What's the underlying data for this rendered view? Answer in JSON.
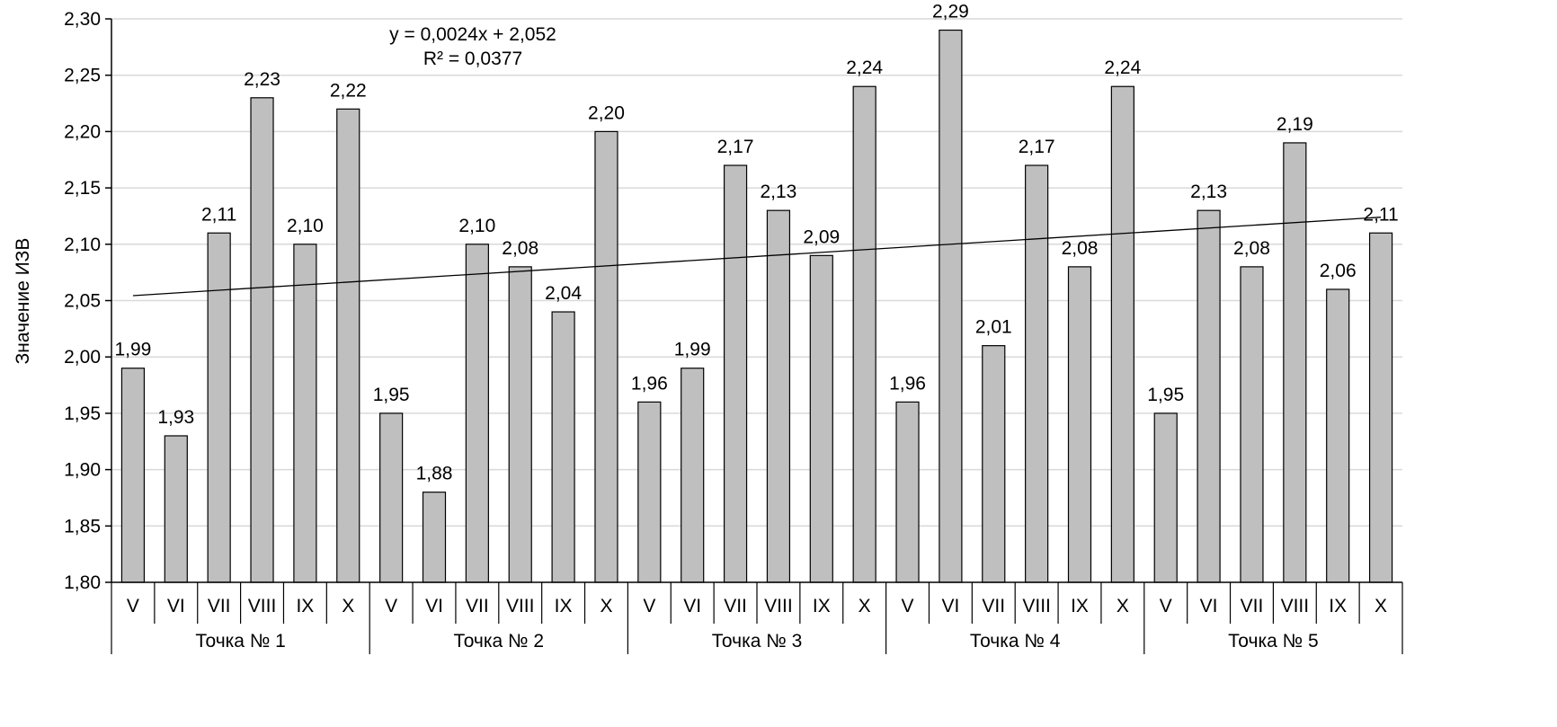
{
  "chart_data": {
    "type": "bar",
    "title": "",
    "xlabel": "",
    "ylabel": "Значение ИЗВ",
    "ylim": [
      1.8,
      2.3
    ],
    "yticks": [
      "1,80",
      "1,85",
      "1,90",
      "1,95",
      "2,00",
      "2,05",
      "2,10",
      "2,15",
      "2,20",
      "2,25",
      "2,30"
    ],
    "grid": true,
    "months": [
      "V",
      "VI",
      "VII",
      "VIII",
      "IX",
      "X"
    ],
    "groups": [
      {
        "name": "Точка № 1",
        "values": [
          1.99,
          1.93,
          2.11,
          2.23,
          2.1,
          2.22
        ],
        "labels": [
          "1,99",
          "1,93",
          "2,11",
          "2,23",
          "2,10",
          "2,22"
        ]
      },
      {
        "name": "Точка № 2",
        "values": [
          1.95,
          1.88,
          2.1,
          2.08,
          2.04,
          2.2
        ],
        "labels": [
          "1,95",
          "1,88",
          "2,10",
          "2,08",
          "2,04",
          "2,20"
        ]
      },
      {
        "name": "Точка № 3",
        "values": [
          1.96,
          1.99,
          2.17,
          2.13,
          2.09,
          2.24
        ],
        "labels": [
          "1,96",
          "1,99",
          "2,17",
          "2,13",
          "2,09",
          "2,24"
        ]
      },
      {
        "name": "Точка № 4",
        "values": [
          1.96,
          2.29,
          2.01,
          2.17,
          2.08,
          2.24
        ],
        "labels": [
          "1,96",
          "2,29",
          "2,01",
          "2,17",
          "2,08",
          "2,24"
        ]
      },
      {
        "name": "Точка № 5",
        "values": [
          1.95,
          2.13,
          2.08,
          2.19,
          2.06,
          2.11
        ],
        "labels": [
          "1,95",
          "2,13",
          "2,08",
          "2,19",
          "2,06",
          "2,11"
        ]
      }
    ],
    "trendline": {
      "type": "linear",
      "slope": 0.0024,
      "intercept": 2.052,
      "equation": "y = 0,0024x + 2,052",
      "r2": "R² = 0,0377"
    },
    "colors": {
      "bar": "#bfbfbf",
      "bar_stroke": "#000000",
      "grid": "#d9d9d9",
      "trend": "#000000"
    }
  }
}
